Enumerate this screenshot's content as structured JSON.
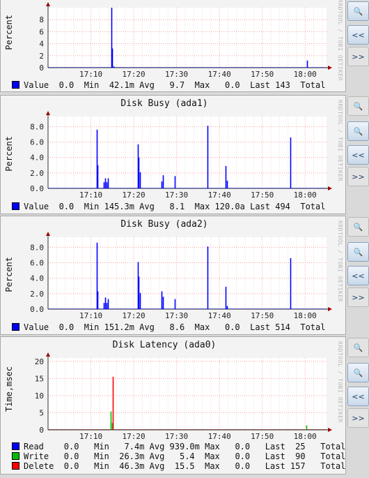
{
  "chart_data": [
    {
      "type": "line",
      "title": "",
      "ylabel": "Percent",
      "x_ticks": [
        "17:10",
        "17:20",
        "17:30",
        "17:40",
        "17:50",
        "18:00"
      ],
      "y_ticks": [
        "0",
        "2",
        "4",
        "6",
        "8"
      ],
      "ylim": [
        0,
        10
      ],
      "series": [
        {
          "name": "Value",
          "color": "#0000ff",
          "points": [
            [
              "17:14.8",
              10
            ],
            [
              "17:15.0",
              3.2
            ],
            [
              "17:15.2",
              0.2
            ],
            [
              "18:00.4",
              1.2
            ]
          ]
        }
      ],
      "legend": [
        {
          "label": "Value",
          "color": "#0000ff",
          "stats": "  0.0  Min  42.1m Avg   9.7  Max   0.0  Last 143  Total"
        }
      ]
    },
    {
      "type": "line",
      "title": "Disk Busy (ada1)",
      "ylabel": "Percent",
      "x_ticks": [
        "17:10",
        "17:20",
        "17:30",
        "17:40",
        "17:50",
        "18:00"
      ],
      "y_ticks": [
        "0.0",
        "2.0",
        "4.0",
        "6.0",
        "8.0"
      ],
      "ylim": [
        0,
        9.3
      ],
      "series": [
        {
          "name": "Value",
          "color": "#0000ff",
          "points": [
            [
              "17:11.4",
              7.6
            ],
            [
              "17:11.6",
              3.0
            ],
            [
              "17:13.0",
              0.8
            ],
            [
              "17:13.3",
              1.3
            ],
            [
              "17:13.6",
              0.8
            ],
            [
              "17:14.0",
              1.3
            ],
            [
              "17:21.0",
              5.7
            ],
            [
              "17:21.2",
              4.0
            ],
            [
              "17:21.4",
              2.1
            ],
            [
              "17:26.5",
              0.9
            ],
            [
              "17:26.8",
              1.7
            ],
            [
              "17:29.5",
              1.6
            ],
            [
              "17:37.2",
              8.1
            ],
            [
              "17:41.5",
              2.9
            ],
            [
              "17:41.7",
              1.0
            ],
            [
              "17:56.6",
              6.6
            ]
          ]
        }
      ],
      "legend": [
        {
          "label": "Value",
          "color": "#0000ff",
          "stats": "  0.0  Min 145.3m Avg   8.1  Max 120.0a Last 494  Total"
        }
      ]
    },
    {
      "type": "line",
      "title": "Disk Busy (ada2)",
      "ylabel": "Percent",
      "x_ticks": [
        "17:10",
        "17:20",
        "17:30",
        "17:40",
        "17:50",
        "18:00"
      ],
      "y_ticks": [
        "0.0",
        "2.0",
        "4.0",
        "6.0",
        "8.0"
      ],
      "ylim": [
        0,
        9.3
      ],
      "series": [
        {
          "name": "Value",
          "color": "#0000ff",
          "points": [
            [
              "17:11.4",
              8.6
            ],
            [
              "17:11.6",
              2.3
            ],
            [
              "17:13.0",
              0.8
            ],
            [
              "17:13.3",
              1.5
            ],
            [
              "17:13.6",
              0.8
            ],
            [
              "17:14.0",
              1.3
            ],
            [
              "17:21.0",
              6.1
            ],
            [
              "17:21.2",
              4.2
            ],
            [
              "17:21.4",
              2.1
            ],
            [
              "17:26.5",
              2.3
            ],
            [
              "17:26.8",
              1.6
            ],
            [
              "17:29.5",
              1.3
            ],
            [
              "17:37.2",
              8.1
            ],
            [
              "17:41.5",
              2.9
            ],
            [
              "17:41.7",
              0.4
            ],
            [
              "17:56.6",
              6.6
            ]
          ]
        }
      ],
      "legend": [
        {
          "label": "Value",
          "color": "#0000ff",
          "stats": "  0.0  Min 151.2m Avg   8.6  Max   0.0  Last 514  Total"
        }
      ]
    },
    {
      "type": "line",
      "title": "Disk Latency (ada0)",
      "ylabel": "Time,msec",
      "x_ticks": [
        "17:10",
        "17:20",
        "17:30",
        "17:40",
        "17:50",
        "18:00"
      ],
      "y_ticks": [
        "0",
        "5",
        "10",
        "15",
        "20"
      ],
      "ylim": [
        0,
        21
      ],
      "series": [
        {
          "name": "Read",
          "color": "#0000ff",
          "points": [
            [
              "17:16.2",
              0.1
            ]
          ]
        },
        {
          "name": "Write",
          "color": "#00bb00",
          "points": [
            [
              "17:14.6",
              5.4
            ],
            [
              "17:14.9",
              2.0
            ],
            [
              "18:00.3",
              1.3
            ]
          ]
        },
        {
          "name": "Delete",
          "color": "#ff0000",
          "points": [
            [
              "17:15.1",
              15.5
            ]
          ]
        }
      ],
      "legend": [
        {
          "label": "Read  ",
          "color": "#0000ff",
          "stats": "  0.0   Min   7.4m Avg 939.0m Max   0.0   Last  25   Total"
        },
        {
          "label": "Write ",
          "color": "#00bb00",
          "stats": "  0.0   Min  26.3m Avg   5.4  Max   0.0   Last  90   Total"
        },
        {
          "label": "Delete",
          "color": "#ff0000",
          "stats": "  0.0   Min  46.3m Avg  15.5  Max   0.0   Last 157   Total"
        }
      ]
    }
  ],
  "watermark": "RRDTOOL / TOBI OETIKER",
  "buttons": {
    "zoom_in": "+",
    "zoom_out": "−",
    "prev": "<<",
    "next": ">>"
  }
}
